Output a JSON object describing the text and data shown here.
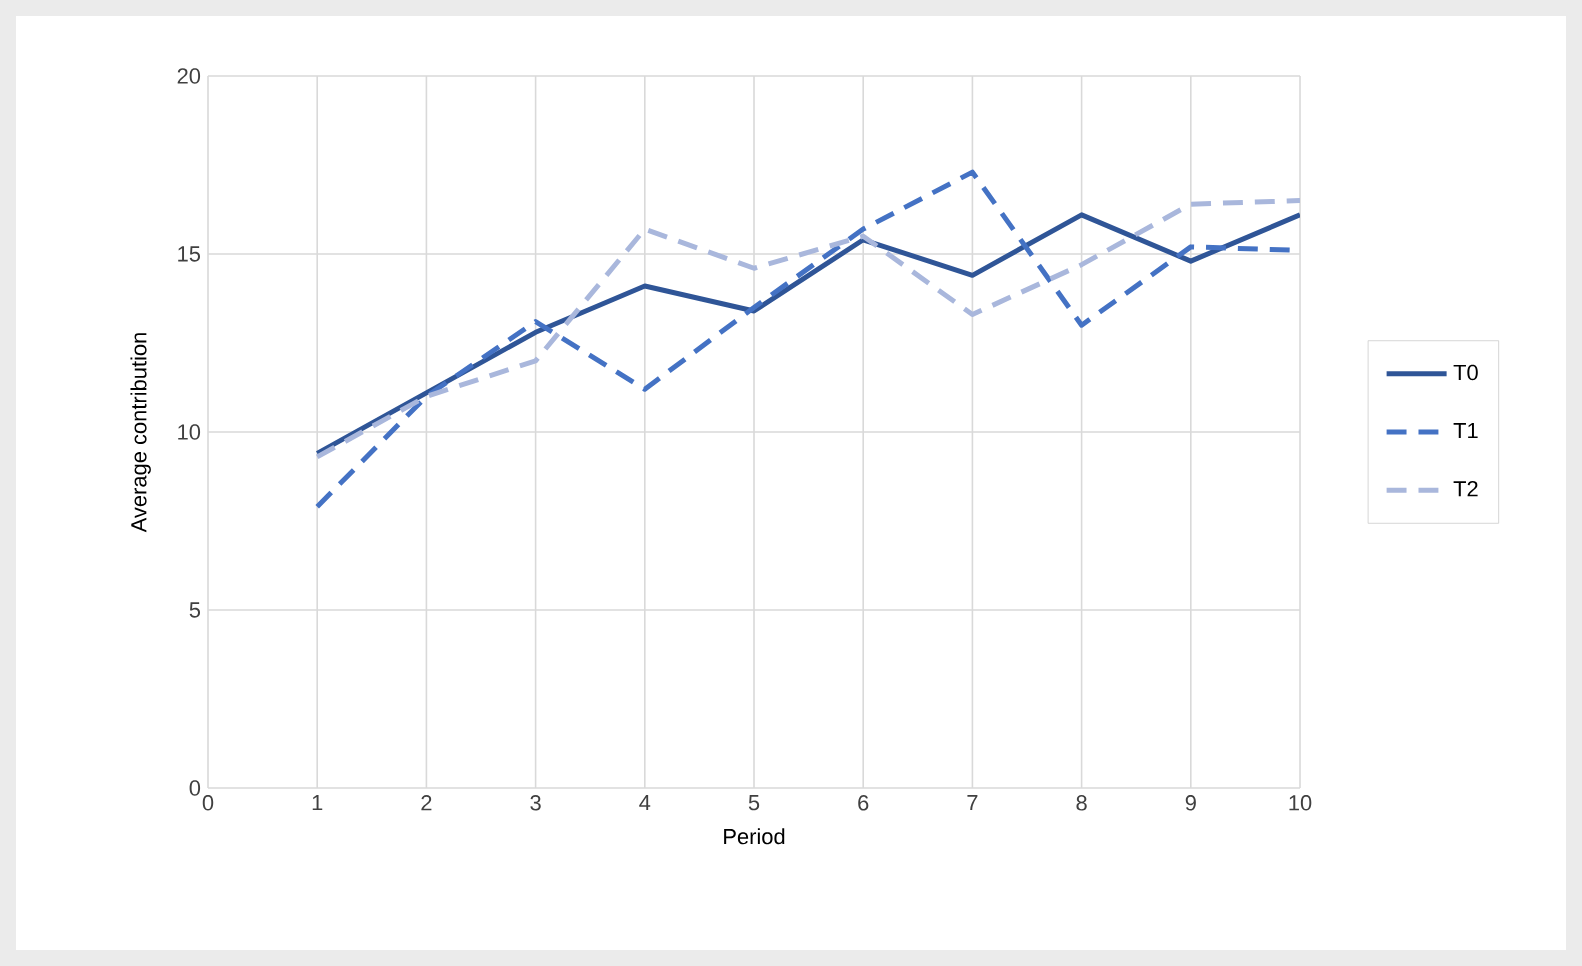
{
  "chart_data": {
    "type": "line",
    "xlabel": "Period",
    "ylabel": "Average contribution",
    "x": [
      1,
      2,
      3,
      4,
      5,
      6,
      7,
      8,
      9,
      10
    ],
    "series": [
      {
        "name": "T0",
        "color": "#2f5597",
        "line_style": "solid",
        "values": [
          9.4,
          11.1,
          12.8,
          14.1,
          13.4,
          15.4,
          14.4,
          16.1,
          14.8,
          16.1
        ]
      },
      {
        "name": "T1",
        "color": "#4472c4",
        "line_style": "dashed",
        "values": [
          7.9,
          11.0,
          13.1,
          11.2,
          13.5,
          15.7,
          17.3,
          13.0,
          15.2,
          15.1
        ]
      },
      {
        "name": "T2",
        "color": "#a9b7dc",
        "line_style": "dashed",
        "values": [
          9.3,
          11.0,
          12.0,
          15.7,
          14.6,
          15.5,
          13.3,
          14.7,
          16.4,
          16.5
        ]
      }
    ],
    "xlim": [
      0,
      10
    ],
    "xticks": [
      0,
      1,
      2,
      3,
      4,
      5,
      6,
      7,
      8,
      9,
      10
    ],
    "ylim": [
      0,
      20
    ],
    "yticks": [
      0,
      5,
      10,
      15,
      20
    ],
    "grid": true,
    "legend": "right",
    "marker": "none"
  }
}
